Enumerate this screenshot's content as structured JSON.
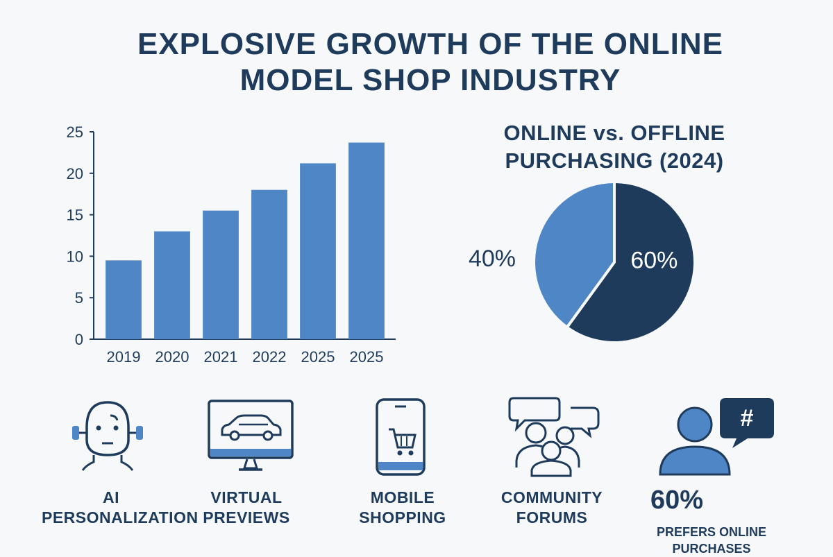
{
  "title": {
    "line1": "EXPLOSIVE GROWTH OF THE ONLINE",
    "line2": "MODEL SHOP INDUSTRY"
  },
  "colors": {
    "navy": "#1f3b5c",
    "blue": "#4f86c6"
  },
  "chart_data": [
    {
      "type": "bar",
      "title": "",
      "xlabel": "",
      "ylabel": "",
      "categories": [
        "2019",
        "2020",
        "2021",
        "2022",
        "2025",
        "2025"
      ],
      "values": [
        9.5,
        13,
        15.5,
        18,
        21.2,
        23.7
      ],
      "ylim": [
        0,
        25
      ],
      "yticks": [
        0,
        5,
        10,
        15,
        20,
        25
      ],
      "grid": false,
      "color": "#4f86c6"
    },
    {
      "type": "pie",
      "title": "ONLINE vs. OFFLINE PURCHASING (2024)",
      "slices": [
        {
          "value": 60,
          "label": "60%",
          "color": "#1f3b5c"
        },
        {
          "value": 40,
          "label": "40%",
          "color": "#4f86c6"
        }
      ]
    }
  ],
  "features": [
    {
      "icon": "robot-head-icon",
      "label_line1": "AI",
      "label_line2": "PERSONALIZATION"
    },
    {
      "icon": "monitor-car-icon",
      "label_line1": "VIRTUAL",
      "label_line2": "PREVIEWS"
    },
    {
      "icon": "phone-cart-icon",
      "label_line1": "MOBILE",
      "label_line2": "SHOPPING"
    },
    {
      "icon": "chat-people-icon",
      "label_line1": "COMMUNITY",
      "label_line2": "FORUMS"
    }
  ],
  "stat": {
    "icon": "user-hashtag-icon",
    "value": "60%",
    "label_line1": "PREFERS ONLINE",
    "label_line2": "PURCHASES"
  }
}
